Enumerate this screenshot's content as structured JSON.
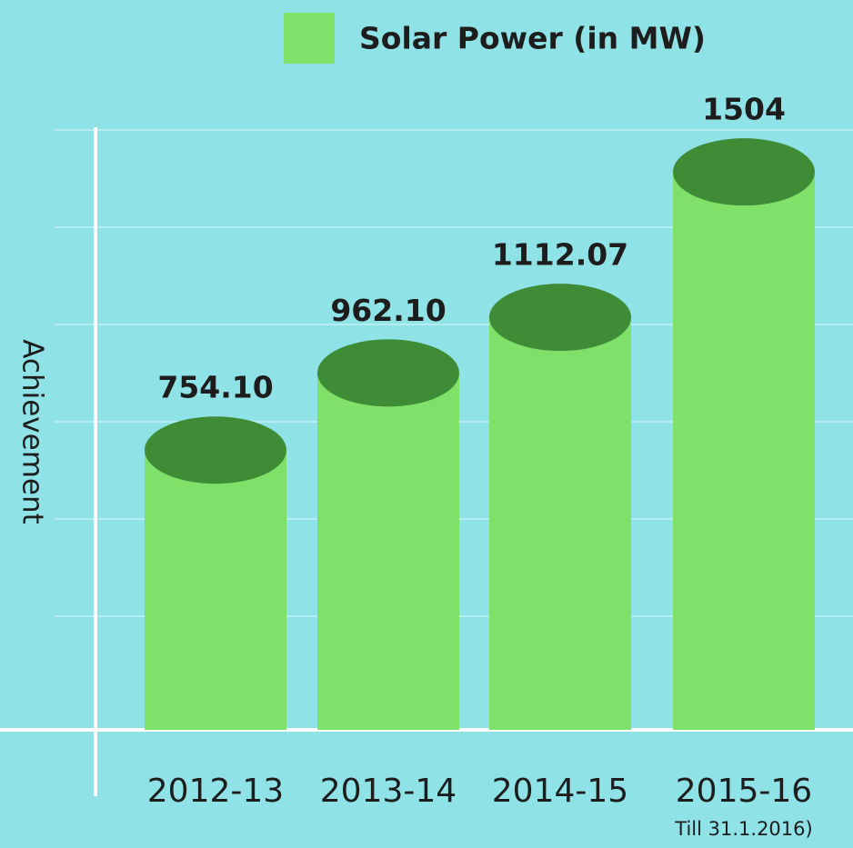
{
  "chart_data": {
    "type": "bar",
    "categories": [
      "2012-13",
      "2013-14",
      "2014-15",
      "2015-16"
    ],
    "series": [
      {
        "name": "Solar Power (in MW)",
        "color": "#7fe06a",
        "top_color": "#3f8c36",
        "values": [
          754.1,
          962.1,
          1112.07,
          1504
        ],
        "value_labels": [
          "754.10",
          "962.10",
          "1112.07",
          "1504"
        ]
      }
    ],
    "ylabel": "Achievement",
    "annotations": [
      "Till 31.1.2016)"
    ],
    "ylim": [
      0,
      1600
    ]
  }
}
